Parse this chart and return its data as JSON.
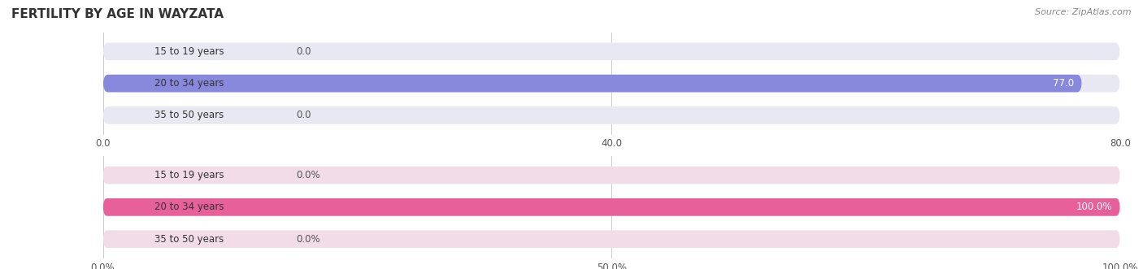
{
  "title": "FERTILITY BY AGE IN WAYZATA",
  "source": "Source: ZipAtlas.com",
  "label_color_inside": "#ffffff",
  "label_color_outside": "#555555",
  "background_color": "#ffffff",
  "title_fontsize": 11,
  "label_fontsize": 8.5,
  "bar_height": 0.55,
  "category_fontsize": 8.5,
  "top_chart": {
    "categories": [
      "15 to 19 years",
      "20 to 34 years",
      "35 to 50 years"
    ],
    "values": [
      0.0,
      77.0,
      0.0
    ],
    "xlim": [
      0,
      80.0
    ],
    "xticks": [
      0.0,
      40.0,
      80.0
    ],
    "xtick_labels": [
      "0.0",
      "40.0",
      "80.0"
    ],
    "bar_color": "#8888dd",
    "bar_bg_color": "#e8e8f2"
  },
  "bottom_chart": {
    "categories": [
      "15 to 19 years",
      "20 to 34 years",
      "35 to 50 years"
    ],
    "values": [
      0.0,
      100.0,
      0.0
    ],
    "xlim": [
      0,
      100.0
    ],
    "xticks": [
      0.0,
      50.0,
      100.0
    ],
    "xtick_labels": [
      "0.0%",
      "50.0%",
      "100.0%"
    ],
    "bar_color": "#e8609a",
    "bar_bg_color": "#f2dce8"
  }
}
